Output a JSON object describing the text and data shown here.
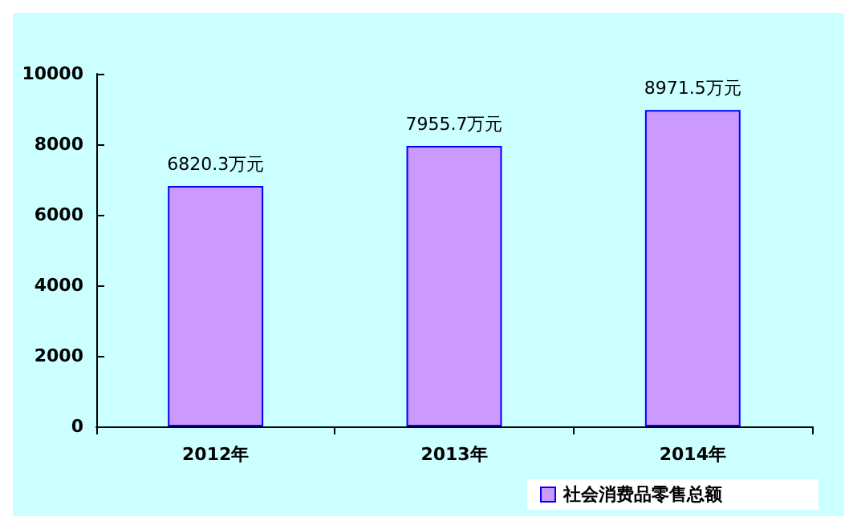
{
  "chart_data": {
    "type": "bar",
    "categories": [
      "2012年",
      "2013年",
      "2014年"
    ],
    "series": [
      {
        "name": "社会消费品零售总额",
        "color": "#cc99ff",
        "values": [
          6820.3,
          7955.7,
          8971.5
        ],
        "value_labels": [
          "6820.3万元",
          "7955.7万元",
          "8971.5万元"
        ]
      }
    ],
    "ylim": [
      0,
      10000
    ],
    "yticks": [
      0,
      2000,
      4000,
      6000,
      8000,
      10000
    ],
    "grid": false,
    "legend": "bottom right"
  }
}
